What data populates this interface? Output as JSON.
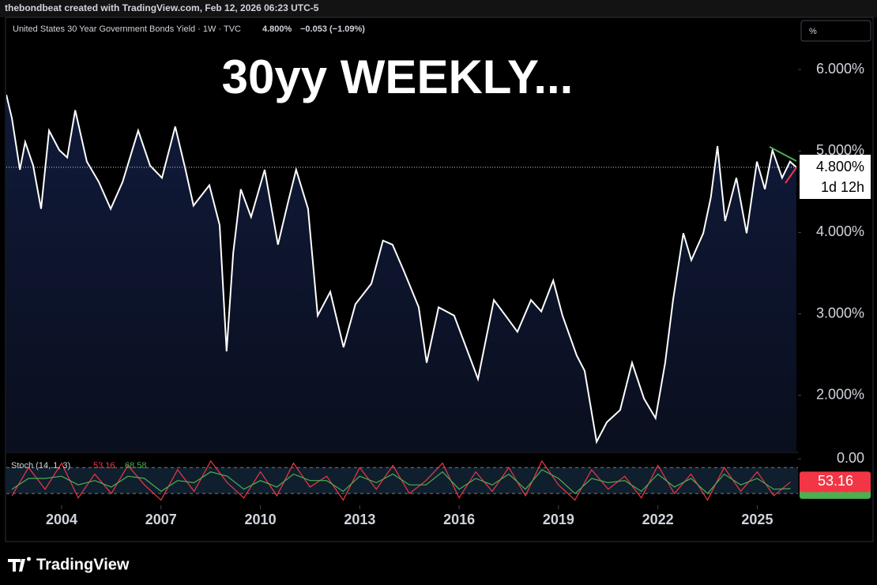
{
  "header": {
    "credit": "thebondbeat created with TradingView.com, Feb 12, 2026 06:23 UTC-5",
    "symbol": "United States 30 Year Government Bonds Yield · 1W · TVC",
    "last": "4.800%",
    "change": "−0.053 (−1.09%)",
    "scale_button": "%",
    "countdown": "1d 12h"
  },
  "chart_data": [
    {
      "type": "line",
      "annotation": "30yy WEEKLY...",
      "color": "#ffffff",
      "area": true,
      "x": [
        2002.33,
        2002.5,
        2002.74,
        2002.9,
        2003.14,
        2003.38,
        2003.62,
        2003.93,
        2004.17,
        2004.41,
        2004.76,
        2005.12,
        2005.48,
        2005.84,
        2006.31,
        2006.67,
        2007.03,
        2007.43,
        2007.74,
        2007.98,
        2008.46,
        2008.77,
        2008.98,
        2009.18,
        2009.41,
        2009.72,
        2010.13,
        2010.53,
        2010.84,
        2011.08,
        2011.44,
        2011.73,
        2012.11,
        2012.51,
        2012.87,
        2013.35,
        2013.7,
        2013.99,
        2014.35,
        2014.78,
        2015.02,
        2015.38,
        2015.85,
        2016.21,
        2016.57,
        2016.81,
        2017.05,
        2017.4,
        2017.76,
        2018.17,
        2018.48,
        2018.84,
        2019.12,
        2019.55,
        2019.79,
        2020.15,
        2020.46,
        2020.86,
        2021.22,
        2021.58,
        2021.93,
        2022.22,
        2022.46,
        2022.77,
        2023.01,
        2023.37,
        2023.6,
        2023.8,
        2024.03,
        2024.37,
        2024.68,
        2024.99,
        2025.23,
        2025.46,
        2025.75,
        2025.99,
        2026.18
      ],
      "values": [
        5.69,
        5.4,
        4.77,
        5.11,
        4.82,
        4.29,
        5.25,
        5.01,
        4.92,
        5.5,
        4.87,
        4.62,
        4.29,
        4.62,
        5.25,
        4.82,
        4.67,
        5.3,
        4.77,
        4.33,
        4.58,
        4.09,
        2.54,
        3.75,
        4.53,
        4.19,
        4.77,
        3.85,
        4.38,
        4.77,
        4.29,
        2.98,
        3.27,
        2.59,
        3.12,
        3.37,
        3.9,
        3.85,
        3.51,
        3.08,
        2.4,
        3.08,
        2.98,
        2.59,
        2.2,
        2.69,
        3.17,
        2.98,
        2.78,
        3.17,
        3.03,
        3.41,
        2.98,
        2.49,
        2.3,
        1.43,
        1.67,
        1.82,
        2.4,
        1.96,
        1.72,
        2.4,
        3.17,
        3.99,
        3.66,
        3.99,
        4.43,
        5.06,
        4.14,
        4.67,
        3.99,
        4.87,
        4.53,
        5.01,
        4.67,
        4.87,
        4.8
      ],
      "xlim": [
        2002.33,
        2026.23
      ],
      "xticks": [
        2004,
        2007,
        2010,
        2013,
        2016,
        2019,
        2022,
        2025
      ],
      "ylim": [
        6.64,
        1.3
      ],
      "yticks": [
        {
          "value": 6,
          "label": "6.000%"
        },
        {
          "value": 5,
          "label": "5.000%"
        },
        {
          "value": 4,
          "label": "4.000%"
        },
        {
          "value": 3,
          "label": "3.000%"
        },
        {
          "value": 2,
          "label": "2.000%"
        }
      ]
    },
    {
      "type": "line",
      "title": "Stoch (14, 1, 3)",
      "x": [
        2002.5,
        2003,
        2003.5,
        2004,
        2004.5,
        2005,
        2005.5,
        2006,
        2006.5,
        2007,
        2007.5,
        2008,
        2008.5,
        2009,
        2009.5,
        2010,
        2010.5,
        2011,
        2011.5,
        2012,
        2012.5,
        2013,
        2013.5,
        2014,
        2014.5,
        2015,
        2015.5,
        2016,
        2016.5,
        2017,
        2017.5,
        2018,
        2018.5,
        2019,
        2019.5,
        2020,
        2020.5,
        2021,
        2021.5,
        2022,
        2022.5,
        2023,
        2023.5,
        2024,
        2024.5,
        2025,
        2025.5,
        2026
      ],
      "series": [
        {
          "name": "%K",
          "color": "#f23645",
          "values": [
            85,
            20,
            70,
            10,
            90,
            35,
            80,
            15,
            60,
            95,
            25,
            75,
            5,
            55,
            90,
            30,
            85,
            10,
            65,
            40,
            95,
            20,
            70,
            15,
            80,
            50,
            10,
            90,
            30,
            75,
            20,
            85,
            5,
            60,
            95,
            25,
            70,
            40,
            90,
            15,
            80,
            35,
            95,
            20,
            75,
            30,
            85,
            53.16
          ]
        },
        {
          "name": "%D",
          "color": "#4caf50",
          "values": [
            70,
            45,
            45,
            40,
            60,
            50,
            65,
            40,
            45,
            75,
            50,
            55,
            30,
            40,
            70,
            50,
            65,
            35,
            50,
            50,
            75,
            40,
            55,
            35,
            60,
            60,
            30,
            70,
            45,
            60,
            35,
            70,
            25,
            45,
            80,
            45,
            55,
            50,
            75,
            35,
            65,
            45,
            80,
            35,
            60,
            45,
            70,
            68.58
          ]
        }
      ],
      "bands": [
        80,
        20
      ],
      "xlim": [
        2002.33,
        2026.23
      ],
      "ylim": [
        -15,
        107
      ],
      "yticks": [
        {
          "value": 0,
          "label": "0.00"
        }
      ]
    }
  ],
  "footer": {
    "brand": "TradingView"
  }
}
